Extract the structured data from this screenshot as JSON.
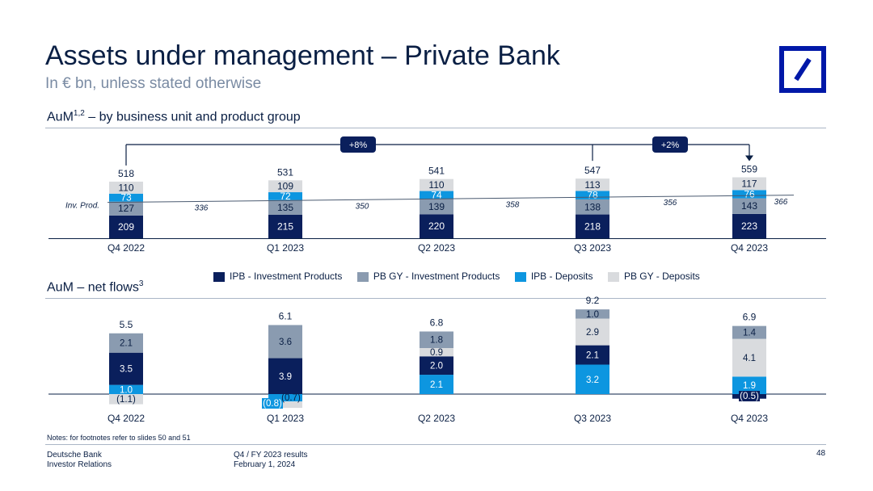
{
  "title": "Assets under management – Private Bank",
  "subtitle": "In € bn, unless stated otherwise",
  "section1": {
    "label": "AuM",
    "sup": "1,2",
    "rest": " – by business unit and product group"
  },
  "section2": {
    "label": "AuM – net flows",
    "sup": "3"
  },
  "legend": [
    {
      "name": "IPB - Investment Products",
      "color": "#0a1f5c"
    },
    {
      "name": "PB GY - Investment Products",
      "color": "#8a9bb0"
    },
    {
      "name": "IPB - Deposits",
      "color": "#0d96e0"
    },
    {
      "name": "PB GY - Deposits",
      "color": "#d9dbde"
    }
  ],
  "footnote": "Notes: for footnotes refer to slides 50 and 51",
  "footer": {
    "company": "Deutsche Bank",
    "department": "Investor Relations",
    "report": "Q4 / FY 2023 results",
    "date": "February 1, 2024",
    "page": "48"
  },
  "chart_data": [
    {
      "type": "bar",
      "stacked": true,
      "title": "AuM – by business unit and product group",
      "categories": [
        "Q4 2022",
        "Q1 2023",
        "Q2 2023",
        "Q3 2023",
        "Q4 2023"
      ],
      "series": [
        {
          "name": "IPB - Investment Products",
          "values": [
            209,
            215,
            220,
            218,
            223
          ],
          "color": "#0a1f5c"
        },
        {
          "name": "PB GY - Investment Products",
          "values": [
            127,
            135,
            139,
            138,
            143
          ],
          "color": "#8a9bb0"
        },
        {
          "name": "IPB - Deposits",
          "values": [
            73,
            72,
            74,
            78,
            76
          ],
          "color": "#0d96e0"
        },
        {
          "name": "PB GY - Deposits",
          "values": [
            110,
            109,
            110,
            113,
            117
          ],
          "color": "#d9dbde"
        }
      ],
      "totals": [
        "518",
        "531",
        "541",
        "547",
        "559"
      ],
      "inv_prod_label": "Inv. Prod.",
      "inv_prod_values": [
        "336",
        "350",
        "358",
        "356",
        "366"
      ],
      "growth_annotations": [
        "+8%",
        "+2%"
      ]
    },
    {
      "type": "bar",
      "stacked": true,
      "title": "AuM – net flows",
      "categories": [
        "Q4 2022",
        "Q1 2023",
        "Q2 2023",
        "Q3 2023",
        "Q4 2023"
      ],
      "series": [
        {
          "name": "IPB - Investment Products",
          "values": [
            3.5,
            3.9,
            2.0,
            2.1,
            -0.5
          ],
          "labels": [
            "3.5",
            "3.9",
            "2.0",
            "2.1",
            "(0.5)"
          ],
          "color": "#0a1f5c"
        },
        {
          "name": "PB GY - Investment Products",
          "values": [
            2.1,
            3.6,
            1.8,
            1.0,
            1.4
          ],
          "labels": [
            "2.1",
            "3.6",
            "1.8",
            "1.0",
            "1.4"
          ],
          "color": "#8a9bb0"
        },
        {
          "name": "IPB - Deposits",
          "values": [
            1.0,
            -0.8,
            2.1,
            3.2,
            1.9
          ],
          "labels": [
            "1.0",
            "(0.8)",
            "2.1",
            "3.2",
            "1.9"
          ],
          "color": "#0d96e0"
        },
        {
          "name": "PB GY - Deposits",
          "values": [
            -1.1,
            -0.7,
            0.9,
            2.9,
            4.1
          ],
          "labels": [
            "(1.1)",
            "(0.7)",
            "0.9",
            "2.9",
            "4.1"
          ],
          "color": "#d9dbde"
        }
      ],
      "totals": [
        "5.5",
        "6.1",
        "6.8",
        "9.2",
        "6.9"
      ]
    }
  ]
}
